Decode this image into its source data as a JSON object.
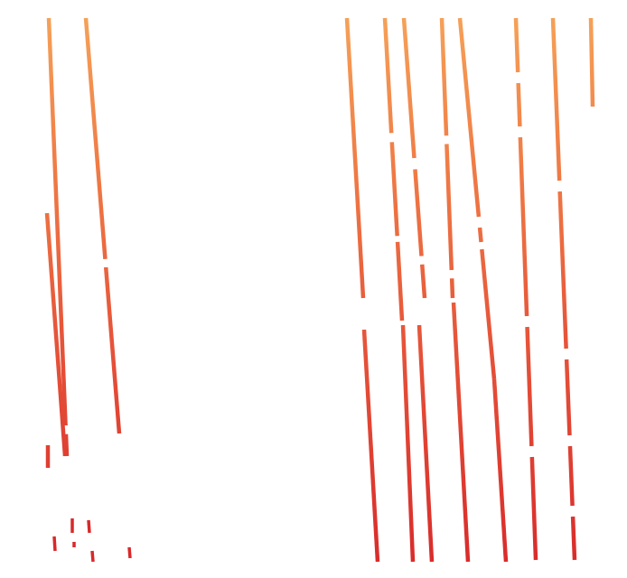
{
  "palette": {
    "background": "#ffffff",
    "top": "#f6a55a",
    "upper": "#ef7a45",
    "middle": "#e6553a",
    "bottom": "#d8292a"
  }
}
